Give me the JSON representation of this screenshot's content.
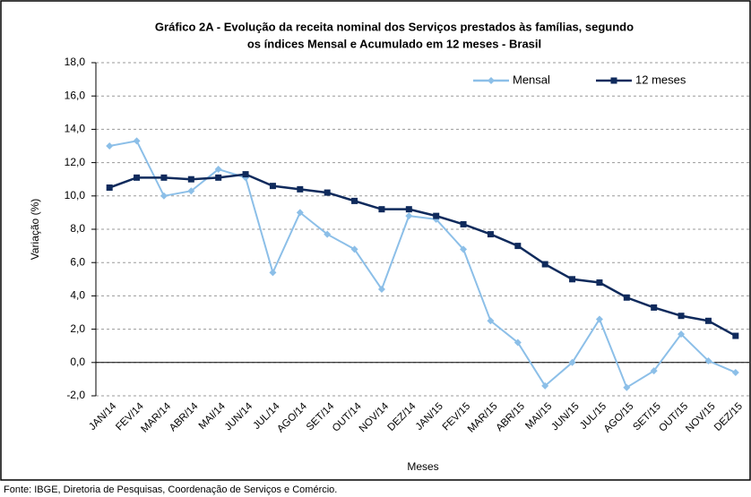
{
  "chart_data": {
    "type": "line",
    "title": [
      "Gráfico 2A - Evolução da receita nominal dos Serviços prestados às famílias, segundo",
      "os índices Mensal e Acumulado em 12 meses - Brasil"
    ],
    "ylabel": "Variação (%)",
    "xlabel": "Meses",
    "source": "Fonte: IBGE, Diretoria de Pesquisas, Coordenação de Serviços e Comércio.",
    "categories": [
      "JAN/14",
      "FEV/14",
      "MAR/14",
      "ABR/14",
      "MAI/14",
      "JUN/14",
      "JUL/14",
      "AGO/14",
      "SET/14",
      "OUT/14",
      "NOV/14",
      "DEZ/14",
      "JAN/15",
      "FEV/15",
      "MAR/15",
      "ABR/15",
      "MAI/15",
      "JUN/15",
      "JUL/15",
      "AGO/15",
      "SET/15",
      "OUT/15",
      "NOV/15",
      "DEZ/15"
    ],
    "series": [
      {
        "name": "Mensal",
        "color": "#8cbfe8",
        "marker": "diamond",
        "values": [
          13.0,
          13.3,
          10.0,
          10.3,
          11.6,
          11.1,
          5.4,
          9.0,
          7.7,
          6.8,
          4.4,
          8.8,
          8.6,
          6.8,
          2.5,
          1.2,
          -1.4,
          0.0,
          2.6,
          -1.5,
          -0.5,
          1.7,
          0.1,
          -0.6
        ]
      },
      {
        "name": "12 meses",
        "color": "#0f2a5c",
        "marker": "square",
        "values": [
          10.5,
          11.1,
          11.1,
          11.0,
          11.1,
          11.3,
          10.6,
          10.4,
          10.2,
          9.7,
          9.2,
          9.2,
          8.8,
          8.3,
          7.7,
          7.0,
          5.9,
          5.0,
          4.8,
          3.9,
          3.3,
          2.8,
          2.5,
          1.6
        ]
      }
    ],
    "ylim": [
      -2,
      18
    ],
    "yticks": [
      {
        "value": -2,
        "label": "-2,0"
      },
      {
        "value": 0,
        "label": "0,0"
      },
      {
        "value": 2,
        "label": "2,0"
      },
      {
        "value": 4,
        "label": "4,0"
      },
      {
        "value": 6,
        "label": "6,0"
      },
      {
        "value": 8,
        "label": "8,0"
      },
      {
        "value": 10,
        "label": "10,0"
      },
      {
        "value": 12,
        "label": "12,0"
      },
      {
        "value": 14,
        "label": "14,0"
      },
      {
        "value": 16,
        "label": "16,0"
      },
      {
        "value": 18,
        "label": "18,0"
      }
    ],
    "grid": true,
    "legend": "top-right"
  }
}
